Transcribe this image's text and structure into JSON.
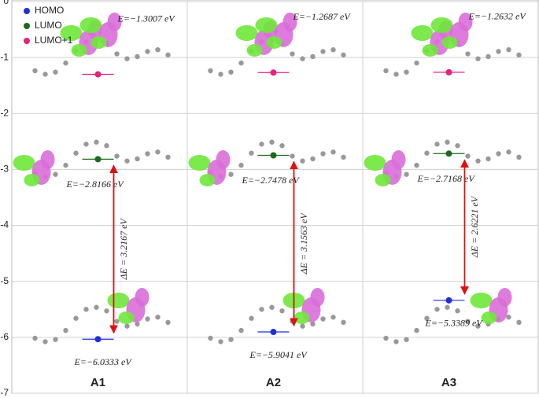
{
  "chart_data": {
    "type": "scatter",
    "categories": [
      "A1",
      "A2",
      "A3"
    ],
    "series": [
      {
        "name": "HOMO",
        "color": "#1f2fd6",
        "values": [
          -6.0333,
          -5.9041,
          -5.3389
        ],
        "value_labels": [
          "E=−6.0333 eV",
          "E=−5.9041 eV",
          "E=−5.3389 eV"
        ]
      },
      {
        "name": "LUMO",
        "color": "#1a6b1a",
        "values": [
          -2.8166,
          -2.7478,
          -2.7168
        ],
        "value_labels": [
          "E=−2.8166 eV",
          "E=−2.7478 eV",
          "E=−2.7168 eV"
        ]
      },
      {
        "name": "LUMO+1",
        "color": "#e8217a",
        "values": [
          -1.3007,
          -1.2687,
          -1.2632
        ],
        "value_labels": [
          "E=−1.3007 eV",
          "E=−1.2687 eV",
          "E=−1.2632 eV"
        ]
      }
    ],
    "annotations": [
      "ΔE = 3.2167 eV",
      "ΔE = 3.1563 eV",
      "ΔE = 2.6221 eV"
    ],
    "ylim": [
      -7,
      0
    ],
    "yticks": [
      -7,
      -6,
      -5,
      -4,
      -3,
      -2,
      -1,
      0
    ],
    "grid": true,
    "legend": "top-left"
  }
}
